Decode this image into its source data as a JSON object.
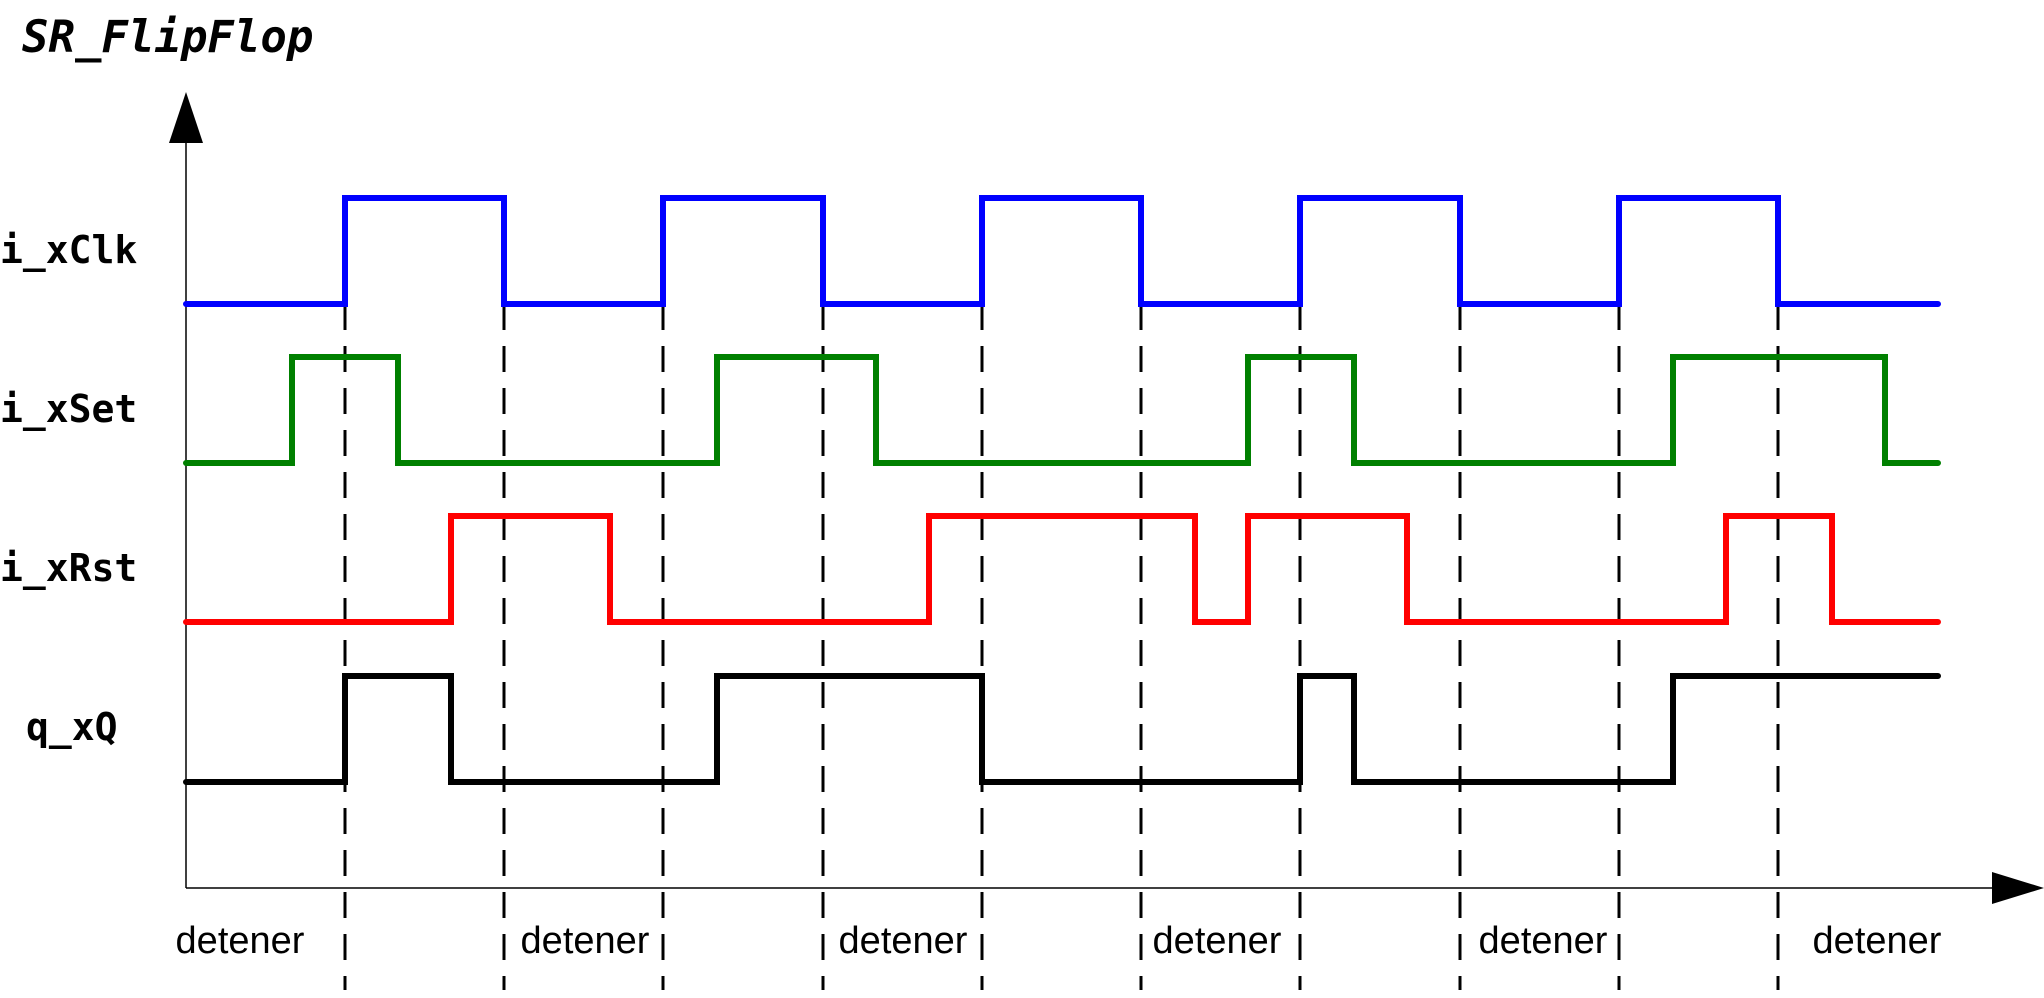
{
  "title": "SR_FlipFlop",
  "phase_label": "detener",
  "signals": [
    {
      "name": "i_xClk",
      "color": "#0000ff",
      "levels": [
        0,
        1,
        0,
        1,
        0,
        1,
        0,
        1,
        0,
        1,
        0
      ]
    },
    {
      "name": "i_xSet",
      "color": "#008000",
      "levels": [
        0,
        1,
        0,
        1,
        0,
        1,
        0,
        1,
        0
      ]
    },
    {
      "name": "i_xRst",
      "color": "#ff0000",
      "levels": [
        0,
        1,
        0,
        1,
        0,
        1,
        0,
        1,
        0
      ]
    },
    {
      "name": "q_xQ",
      "color": "#000000",
      "levels": [
        0,
        1,
        0,
        1,
        0,
        1,
        0,
        1
      ]
    }
  ]
}
